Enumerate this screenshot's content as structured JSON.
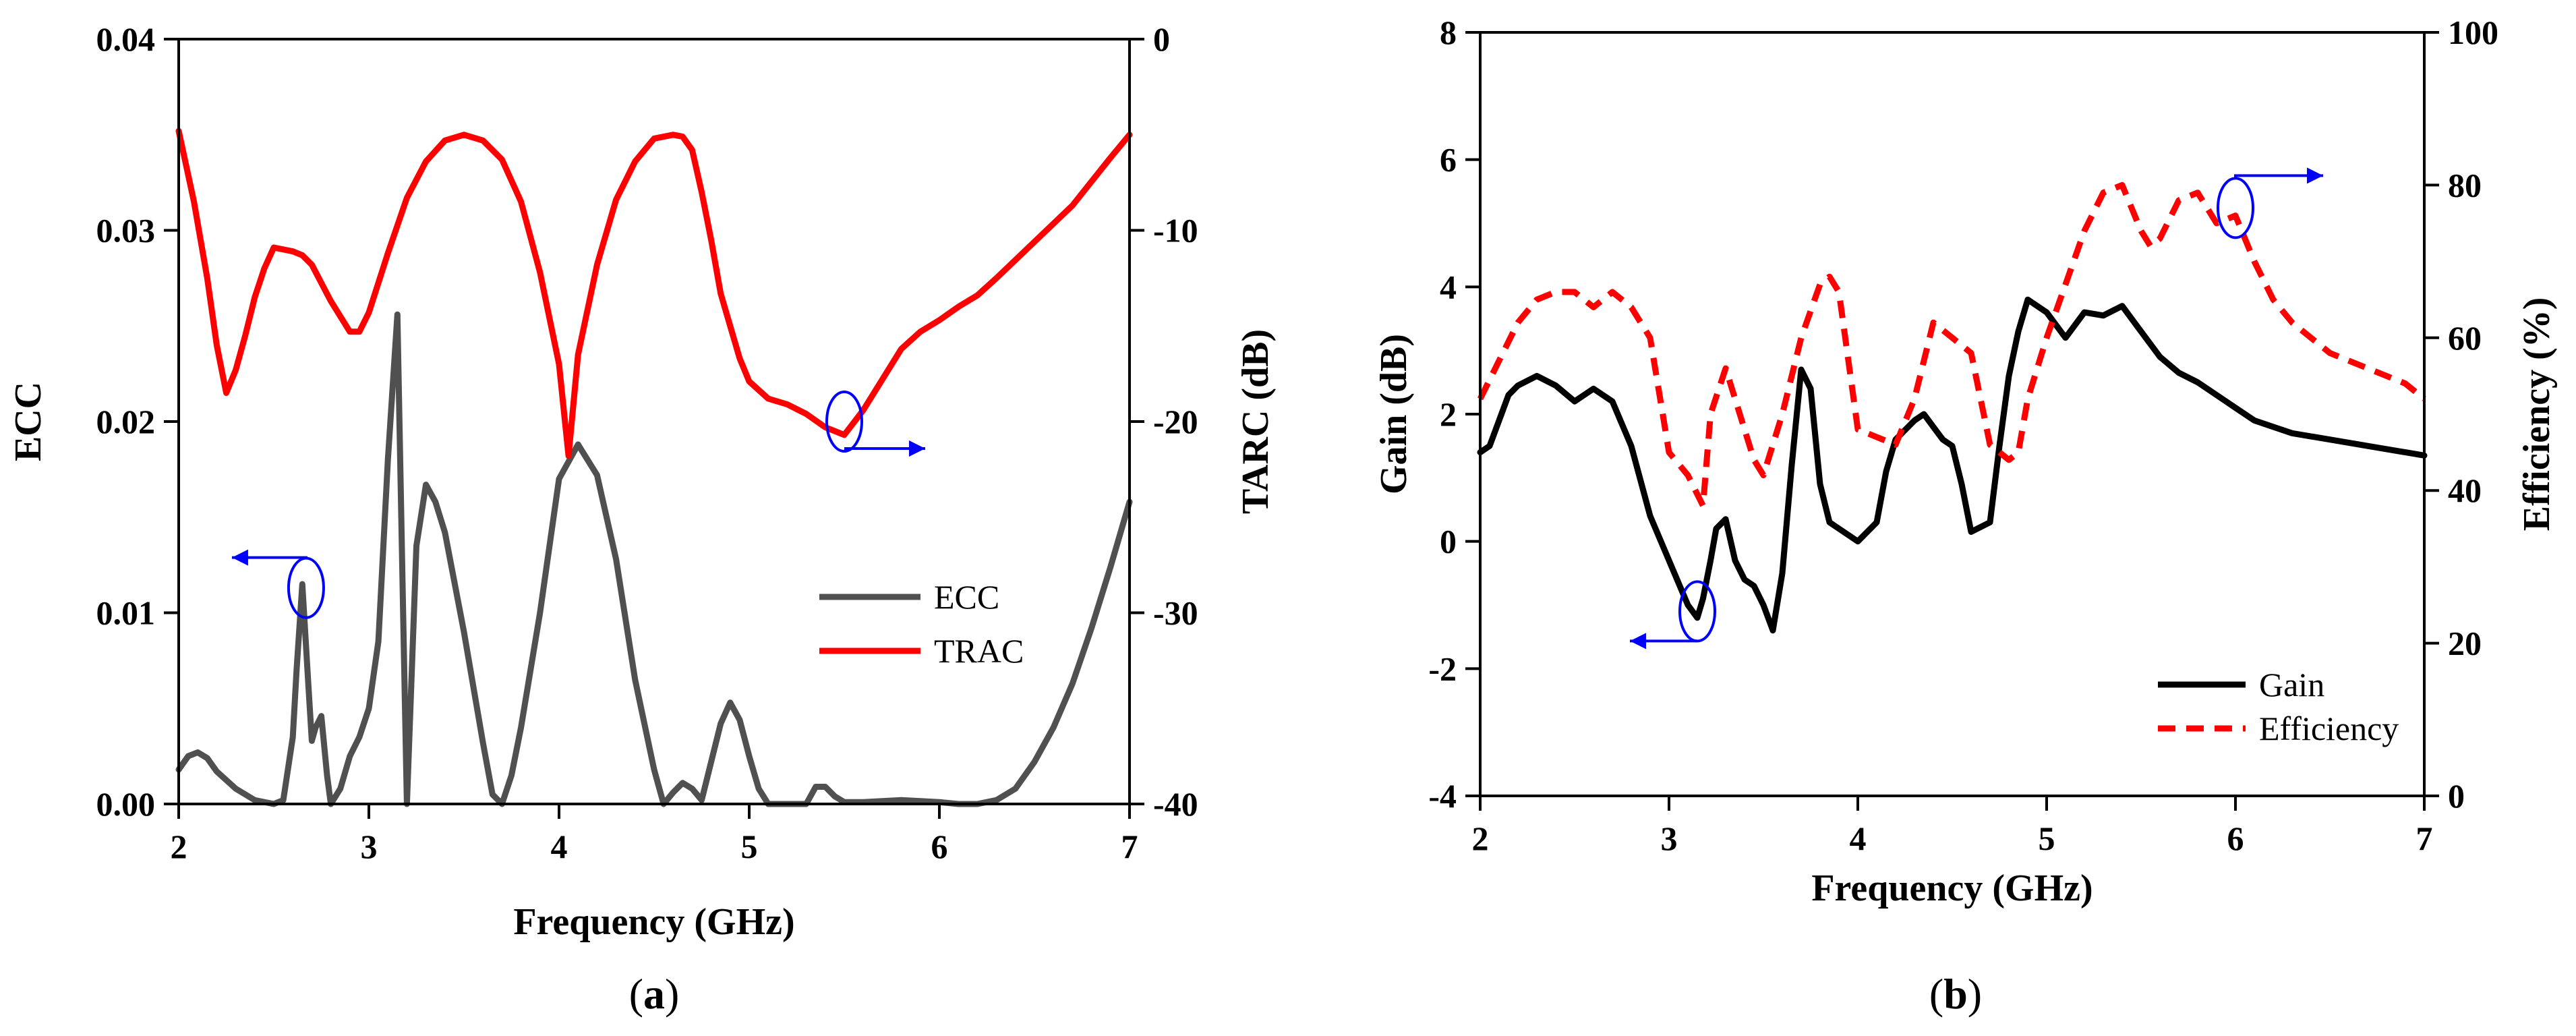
{
  "chart_data": [
    {
      "panel_label": "a",
      "type": "line",
      "xlabel": "Frequency (GHz)",
      "ylabel": "ECC",
      "y2label": "TARC (dB)",
      "xlim": [
        2,
        7
      ],
      "ylim": [
        0,
        0.04
      ],
      "y2lim": [
        -40,
        0
      ],
      "xticks": [
        "2",
        "3",
        "4",
        "5",
        "6",
        "7"
      ],
      "yticks": [
        "0.00",
        "0.01",
        "0.02",
        "0.03",
        "0.04"
      ],
      "y2ticks": [
        "-40",
        "-30",
        "-20",
        "-10",
        "0"
      ],
      "legend_position": "center-right",
      "series": [
        {
          "name": "ECC",
          "axis": "left",
          "color": "#505050",
          "dash": "solid",
          "x": [
            2.0,
            2.05,
            2.1,
            2.15,
            2.2,
            2.3,
            2.4,
            2.5,
            2.55,
            2.6,
            2.62,
            2.65,
            2.68,
            2.7,
            2.72,
            2.75,
            2.78,
            2.8,
            2.85,
            2.9,
            2.95,
            3.0,
            3.05,
            3.1,
            3.15,
            3.18,
            3.2,
            3.25,
            3.3,
            3.35,
            3.4,
            3.5,
            3.6,
            3.65,
            3.7,
            3.75,
            3.8,
            3.9,
            4.0,
            4.1,
            4.2,
            4.3,
            4.4,
            4.5,
            4.55,
            4.6,
            4.65,
            4.7,
            4.75,
            4.8,
            4.85,
            4.9,
            4.95,
            5.0,
            5.05,
            5.1,
            5.2,
            5.3,
            5.35,
            5.4,
            5.45,
            5.5,
            5.6,
            5.8,
            6.0,
            6.1,
            6.2,
            6.3,
            6.4,
            6.5,
            6.6,
            6.7,
            6.8,
            6.9,
            7.0
          ],
          "y": [
            0.0018,
            0.0025,
            0.0027,
            0.0024,
            0.0017,
            0.0008,
            0.0002,
            0.0,
            0.0002,
            0.0035,
            0.007,
            0.0115,
            0.0065,
            0.0033,
            0.004,
            0.0046,
            0.0015,
            0.0,
            0.0008,
            0.0025,
            0.0035,
            0.005,
            0.0085,
            0.018,
            0.0256,
            0.01,
            0.0,
            0.0135,
            0.0167,
            0.0158,
            0.0142,
            0.009,
            0.0032,
            0.0005,
            0.0,
            0.0015,
            0.004,
            0.01,
            0.017,
            0.0188,
            0.0172,
            0.0128,
            0.0065,
            0.0018,
            0.0,
            0.0006,
            0.0011,
            0.0008,
            0.0002,
            0.0022,
            0.0042,
            0.0053,
            0.0044,
            0.0025,
            0.0008,
            0.0,
            0.0,
            0.0,
            0.0009,
            0.0009,
            0.0004,
            0.0001,
            0.0001,
            0.0002,
            0.0001,
            0.0,
            0.0,
            0.0002,
            0.0008,
            0.0022,
            0.004,
            0.0063,
            0.0092,
            0.0124,
            0.0158
          ]
        },
        {
          "name": "TRAC",
          "axis": "right",
          "color": "#ff0000",
          "dash": "solid",
          "x": [
            2.0,
            2.08,
            2.15,
            2.2,
            2.25,
            2.3,
            2.35,
            2.4,
            2.45,
            2.5,
            2.6,
            2.65,
            2.7,
            2.8,
            2.9,
            2.95,
            3.0,
            3.1,
            3.2,
            3.3,
            3.4,
            3.5,
            3.6,
            3.7,
            3.8,
            3.9,
            4.0,
            4.05,
            4.1,
            4.2,
            4.3,
            4.4,
            4.5,
            4.6,
            4.65,
            4.7,
            4.75,
            4.8,
            4.85,
            4.9,
            4.95,
            5.0,
            5.1,
            5.2,
            5.3,
            5.4,
            5.5,
            5.6,
            5.7,
            5.8,
            5.9,
            6.0,
            6.1,
            6.2,
            6.3,
            6.5,
            6.7,
            6.9,
            7.0
          ],
          "y": [
            -4.8,
            -8.5,
            -12.5,
            -16.0,
            -18.5,
            -17.3,
            -15.5,
            -13.5,
            -12.0,
            -10.9,
            -11.1,
            -11.3,
            -11.8,
            -13.7,
            -15.3,
            -15.3,
            -14.3,
            -11.2,
            -8.3,
            -6.4,
            -5.3,
            -5.0,
            -5.3,
            -6.3,
            -8.5,
            -12.2,
            -17.0,
            -21.8,
            -16.5,
            -11.8,
            -8.4,
            -6.4,
            -5.2,
            -5.0,
            -5.1,
            -5.8,
            -8.0,
            -10.5,
            -13.3,
            -15.0,
            -16.7,
            -17.9,
            -18.8,
            -19.1,
            -19.6,
            -20.3,
            -20.7,
            -19.4,
            -17.8,
            -16.2,
            -15.3,
            -14.7,
            -14.0,
            -13.4,
            -12.5,
            -10.6,
            -8.7,
            -6.2,
            -5.0
          ]
        }
      ],
      "annotations": [
        {
          "type": "ellipse-arrow",
          "cx": 2.67,
          "cy_left": 0.0113,
          "arrow": "left"
        },
        {
          "type": "ellipse-arrow",
          "cx": 5.5,
          "cy_right": -20.0,
          "arrow": "right"
        }
      ]
    },
    {
      "panel_label": "b",
      "type": "line",
      "xlabel": "Frequency (GHz)",
      "ylabel": "Gain (dB)",
      "y2label": "Efficiency (%)",
      "xlim": [
        2,
        7
      ],
      "ylim": [
        -4,
        8
      ],
      "y2lim": [
        0,
        100
      ],
      "xticks": [
        "2",
        "3",
        "4",
        "5",
        "6",
        "7"
      ],
      "yticks": [
        "-4",
        "-2",
        "0",
        "2",
        "4",
        "6",
        "8"
      ],
      "y2ticks": [
        "0",
        "20",
        "40",
        "60",
        "80",
        "100"
      ],
      "legend_position": "bottom-right",
      "series": [
        {
          "name": "Gain",
          "axis": "left",
          "color": "#000000",
          "dash": "solid",
          "x": [
            2.0,
            2.05,
            2.1,
            2.15,
            2.2,
            2.3,
            2.4,
            2.5,
            2.6,
            2.7,
            2.8,
            2.9,
            3.0,
            3.1,
            3.15,
            3.18,
            3.22,
            3.25,
            3.3,
            3.35,
            3.4,
            3.45,
            3.5,
            3.55,
            3.6,
            3.65,
            3.7,
            3.75,
            3.8,
            3.85,
            3.9,
            4.0,
            4.1,
            4.15,
            4.2,
            4.3,
            4.35,
            4.4,
            4.45,
            4.5,
            4.55,
            4.6,
            4.7,
            4.75,
            4.8,
            4.85,
            4.9,
            5.0,
            5.1,
            5.2,
            5.3,
            5.4,
            5.5,
            5.6,
            5.7,
            5.8,
            5.9,
            6.0,
            6.1,
            6.2,
            6.3,
            6.5,
            6.7,
            6.9,
            7.0
          ],
          "y": [
            1.4,
            1.5,
            1.9,
            2.3,
            2.45,
            2.6,
            2.45,
            2.2,
            2.4,
            2.2,
            1.5,
            0.4,
            -0.3,
            -1.0,
            -1.2,
            -0.9,
            -0.3,
            0.2,
            0.35,
            -0.3,
            -0.6,
            -0.7,
            -1.0,
            -1.4,
            -0.5,
            1.2,
            2.7,
            2.4,
            0.9,
            0.3,
            0.2,
            0.0,
            0.3,
            1.1,
            1.6,
            1.9,
            2.0,
            1.8,
            1.6,
            1.5,
            0.9,
            0.15,
            0.3,
            1.5,
            2.6,
            3.3,
            3.8,
            3.6,
            3.2,
            3.6,
            3.55,
            3.7,
            3.3,
            2.9,
            2.65,
            2.5,
            2.3,
            2.1,
            1.9,
            1.8,
            1.7,
            1.6,
            1.5,
            1.4,
            1.35
          ]
        },
        {
          "name": "Efficiency",
          "axis": "right",
          "color": "#ff0000",
          "dash": "dashed",
          "x": [
            2.0,
            2.1,
            2.2,
            2.3,
            2.4,
            2.5,
            2.55,
            2.6,
            2.7,
            2.8,
            2.9,
            3.0,
            3.1,
            3.18,
            3.22,
            3.3,
            3.35,
            3.4,
            3.45,
            3.5,
            3.55,
            3.6,
            3.7,
            3.8,
            3.85,
            3.9,
            4.0,
            4.1,
            4.2,
            4.3,
            4.4,
            4.5,
            4.6,
            4.7,
            4.8,
            4.85,
            4.9,
            5.0,
            5.1,
            5.2,
            5.3,
            5.4,
            5.5,
            5.55,
            5.6,
            5.7,
            5.8,
            5.85,
            5.9,
            6.0,
            6.05,
            6.1,
            6.2,
            6.3,
            6.5,
            6.7,
            6.9,
            7.0
          ],
          "y": [
            52,
            57,
            62,
            65,
            66,
            66,
            65,
            64,
            66,
            64,
            60,
            45,
            42,
            38,
            50,
            56,
            52,
            48,
            44,
            42,
            46,
            50,
            60,
            67,
            68,
            66,
            48,
            47,
            46,
            52,
            62,
            60,
            58,
            46,
            44,
            45,
            52,
            60,
            67,
            74,
            79,
            80,
            74,
            72,
            73,
            78,
            79,
            77,
            75,
            76,
            73,
            70,
            65,
            62,
            58,
            56,
            54,
            52
          ]
        }
      ],
      "annotations": [
        {
          "type": "ellipse-arrow",
          "cx": 3.15,
          "cy_left": -1.1,
          "arrow": "left"
        },
        {
          "type": "ellipse-arrow",
          "cx": 6.0,
          "cy_right": 77.0,
          "arrow": "right"
        }
      ]
    }
  ]
}
